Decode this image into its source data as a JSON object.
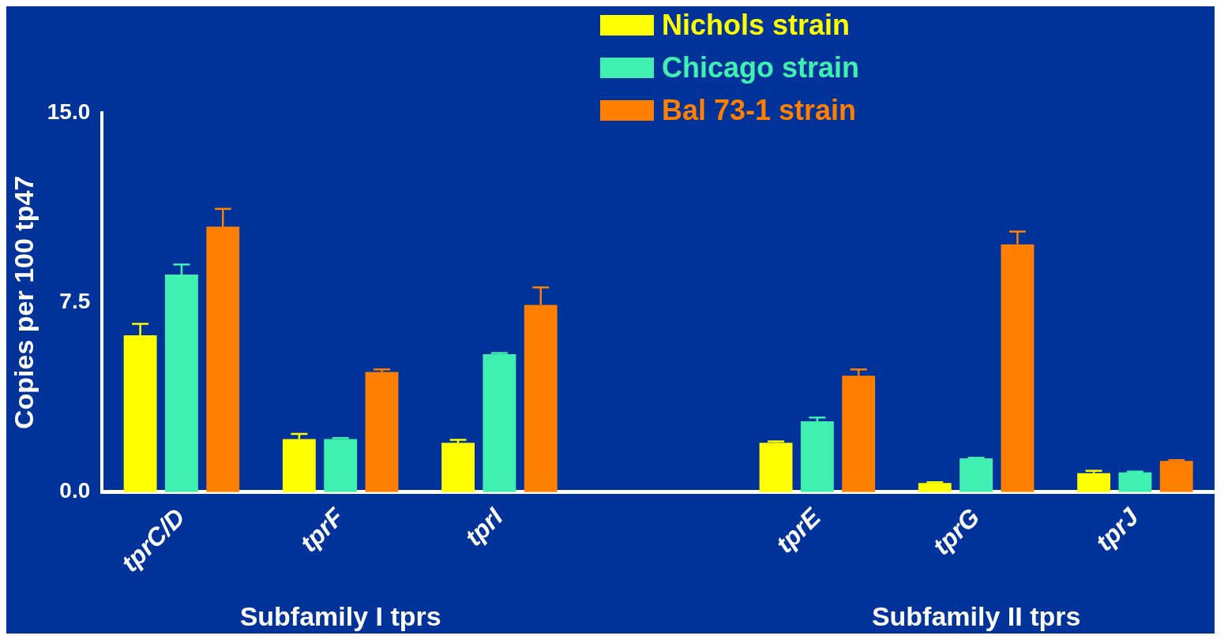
{
  "chart_data": {
    "type": "bar",
    "ylabel": "Copies per 100 tp47",
    "categories": [
      "tprC/D",
      "tprF",
      "tprI",
      null,
      "tprE",
      "tprG",
      "tprJ"
    ],
    "series": [
      {
        "name": "Nichols strain",
        "color": "#ffff00",
        "values": [
          6.2,
          2.1,
          1.95,
          null,
          1.95,
          0.36,
          0.75
        ],
        "errors": [
          [
            6.2,
            6.65
          ],
          [
            2.1,
            2.3
          ],
          [
            1.95,
            2.07
          ],
          null,
          [
            1.95,
            2.0
          ],
          [
            0.36,
            0.39
          ],
          [
            0.75,
            0.84
          ]
        ]
      },
      {
        "name": "Chicago strain",
        "color": "#40f0b0",
        "values": [
          8.6,
          2.1,
          5.45,
          null,
          2.8,
          1.33,
          0.78
        ],
        "errors": [
          [
            8.6,
            9.0
          ],
          [
            2.1,
            2.14
          ],
          [
            5.45,
            5.5
          ],
          null,
          [
            2.8,
            2.95
          ],
          [
            1.33,
            1.36
          ],
          [
            0.78,
            0.81
          ]
        ]
      },
      {
        "name": "Bal 73-1 strain",
        "color": "#ff7f00",
        "values": [
          10.5,
          4.75,
          7.4,
          null,
          4.6,
          9.8,
          1.23
        ],
        "errors": [
          [
            10.5,
            11.2
          ],
          [
            4.75,
            4.85
          ],
          [
            7.4,
            8.1
          ],
          null,
          [
            4.6,
            4.85
          ],
          [
            9.8,
            10.3
          ],
          [
            1.23,
            1.26
          ]
        ]
      }
    ],
    "ylim": [
      0,
      15
    ],
    "yticks": [
      {
        "value": 0,
        "label": "0.0"
      },
      {
        "value": 7.5,
        "label": "7.5"
      },
      {
        "value": 15,
        "label": "15.0"
      }
    ],
    "grid": false,
    "legend": "top",
    "annotations": [
      "Subfamily I tprs",
      "Subfamily II tprs"
    ]
  }
}
